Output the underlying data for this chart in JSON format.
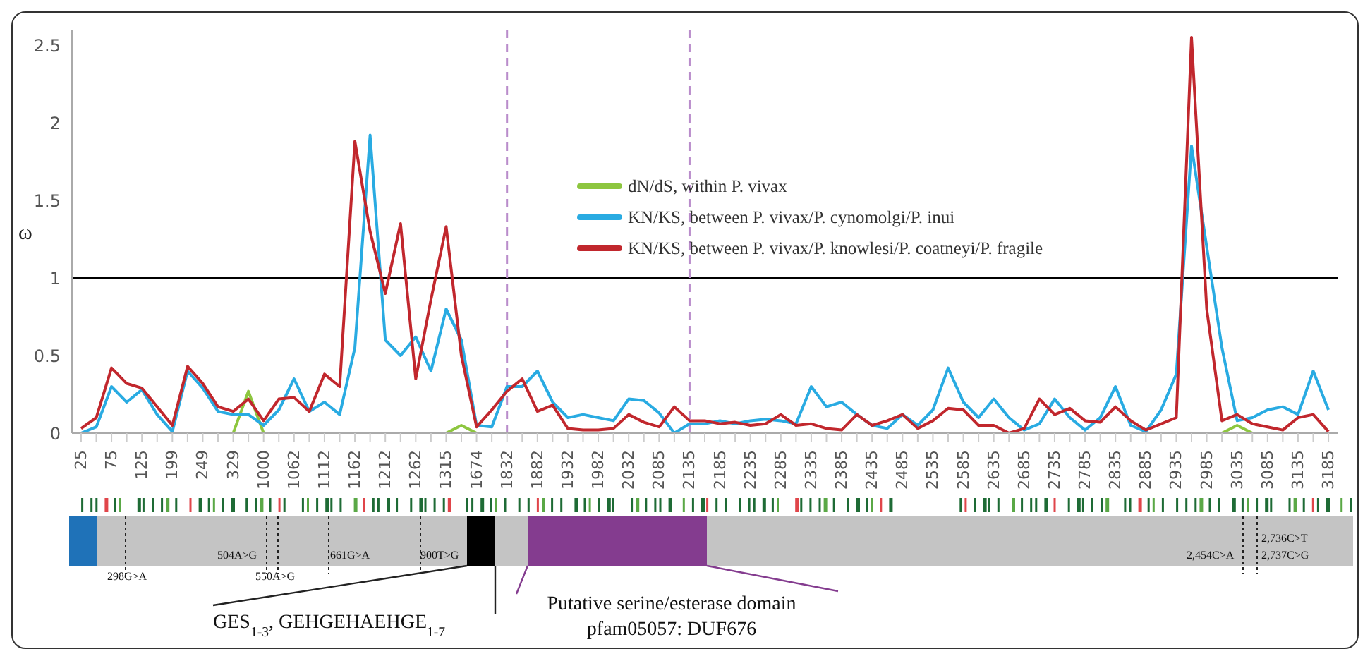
{
  "chart_data": {
    "type": "line",
    "categories": [
      "25",
      null,
      "75",
      null,
      "125",
      null,
      "199",
      null,
      "249",
      null,
      "329",
      null,
      "1000",
      null,
      "1062",
      null,
      "1112",
      null,
      "1162",
      null,
      "1212",
      null,
      "1262",
      null,
      "1315",
      null,
      "1674",
      null,
      "1832",
      null,
      "1882",
      null,
      "1932",
      null,
      "1982",
      null,
      "2032",
      null,
      "2085",
      null,
      "2135",
      null,
      "2185",
      null,
      "2235",
      null,
      "2285",
      null,
      "2335",
      null,
      "2385",
      null,
      "2435",
      null,
      "2485",
      null,
      "2535",
      null,
      "2585",
      null,
      "2635",
      null,
      "2685",
      null,
      "2735",
      null,
      "2785",
      null,
      "2835",
      null,
      "2885",
      null,
      "2935",
      null,
      "2985",
      null,
      "3035",
      null,
      "3085",
      null,
      "3135",
      null,
      "3185"
    ],
    "series": [
      {
        "name": "dN/dS, within P. vivax",
        "color": "#8dc63f",
        "values": [
          0,
          0,
          0,
          0,
          0,
          0,
          0,
          0,
          0,
          0,
          0,
          0.27,
          0,
          0,
          0,
          0,
          0,
          0,
          0,
          0,
          0,
          0,
          0,
          0,
          0,
          0.05,
          0,
          0,
          0,
          0,
          0,
          0,
          0,
          0,
          0,
          0,
          0,
          0,
          0,
          0,
          0,
          0,
          0,
          0,
          0,
          0,
          0,
          0,
          0,
          0,
          0,
          0,
          0,
          0,
          0,
          0,
          0,
          0,
          0,
          0,
          0,
          0,
          0,
          0,
          0,
          0,
          0,
          0,
          0,
          0,
          0,
          0,
          0,
          0,
          0,
          0,
          0.05,
          0,
          0,
          0,
          0,
          0,
          0
        ]
      },
      {
        "name": "KN/KS, between P. vivax/P. cynomolgi/P. inui",
        "color": "#29abe2",
        "values": [
          0,
          0.04,
          0.3,
          0.2,
          0.28,
          0.12,
          0.01,
          0.4,
          0.29,
          0.14,
          0.12,
          0.12,
          0.05,
          0.15,
          0.35,
          0.14,
          0.2,
          0.12,
          0.55,
          1.92,
          0.6,
          0.5,
          0.62,
          0.4,
          0.8,
          0.6,
          0.05,
          0.04,
          0.3,
          0.3,
          0.4,
          0.2,
          0.1,
          0.12,
          0.1,
          0.08,
          0.22,
          0.21,
          0.13,
          0,
          0.06,
          0.06,
          0.08,
          0.06,
          0.08,
          0.09,
          0.08,
          0.06,
          0.3,
          0.17,
          0.2,
          0.12,
          0.05,
          0.03,
          0.12,
          0.05,
          0.15,
          0.42,
          0.2,
          0.1,
          0.22,
          0.1,
          0.02,
          0.06,
          0.22,
          0.1,
          0.02,
          0.1,
          0.3,
          0.05,
          0.01,
          0.15,
          0.38,
          1.85,
          1.2,
          0.55,
          0.08,
          0.1,
          0.15,
          0.17,
          0.12,
          0.4,
          0.15
        ]
      },
      {
        "name": "KN/KS, between P. vivax/P. knowlesi/P. coatneyi/P. fragile",
        "color": "#c1272d",
        "values": [
          0.03,
          0.1,
          0.42,
          0.32,
          0.29,
          0.17,
          0.05,
          0.43,
          0.32,
          0.17,
          0.14,
          0.22,
          0.08,
          0.22,
          0.23,
          0.14,
          0.38,
          0.3,
          1.88,
          1.3,
          0.9,
          1.35,
          0.35,
          0.86,
          1.33,
          0.5,
          0.04,
          0.15,
          0.27,
          0.35,
          0.14,
          0.18,
          0.03,
          0.02,
          0.02,
          0.03,
          0.12,
          0.07,
          0.04,
          0.17,
          0.08,
          0.08,
          0.06,
          0.07,
          0.05,
          0.06,
          0.12,
          0.05,
          0.06,
          0.03,
          0.02,
          0.12,
          0.05,
          0.08,
          0.12,
          0.03,
          0.08,
          0.16,
          0.15,
          0.05,
          0.05,
          0,
          0.03,
          0.22,
          0.12,
          0.16,
          0.08,
          0.07,
          0.17,
          0.08,
          0.02,
          0.06,
          0.1,
          2.55,
          0.8,
          0.08,
          0.12,
          0.06,
          0.04,
          0.02,
          0.1,
          0.12,
          0.01
        ]
      }
    ],
    "ylabel": "ω",
    "ylim": [
      0,
      2.6
    ],
    "yticks": [
      0,
      0.5,
      1,
      1.5,
      2,
      2.5
    ],
    "ref_lines": [
      {
        "axis": "y",
        "value": 1,
        "color": "#000000"
      },
      {
        "axis": "x",
        "value": "1832",
        "color": "#b98ccb",
        "line_style": "dashed"
      },
      {
        "axis": "x",
        "value": "2135",
        "color": "#b98ccb",
        "line_style": "dashed"
      }
    ],
    "legend": "top",
    "grid": false,
    "annotations": [
      "298G>A",
      "504A>G",
      "550A>G",
      "661G>A",
      "900T>G",
      "2,454C>A",
      "2,736C>T",
      "2,737C>G",
      "GES$_{1-3}$, GEHGEHAEHGE$_{1-7}$",
      "Putative serine/esterase domain",
      "pfam05057: DUF676"
    ]
  }
}
